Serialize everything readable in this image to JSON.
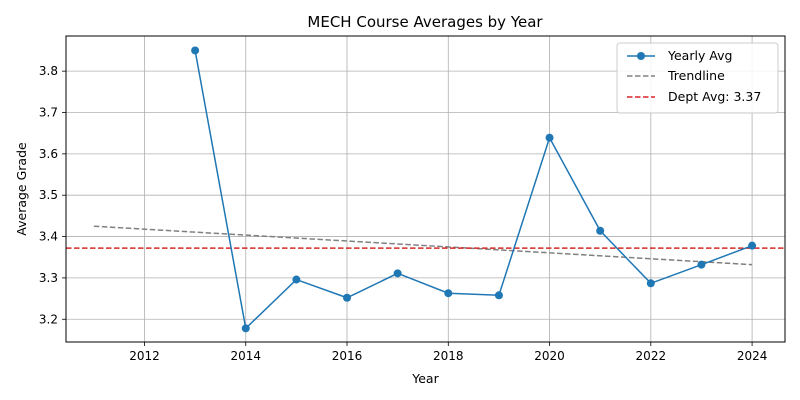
{
  "chart_data": {
    "type": "line",
    "title": "MECH Course Averages by Year",
    "xlabel": "Year",
    "ylabel": "Average Grade",
    "xlim": [
      2010.45,
      2024.65
    ],
    "ylim": [
      3.145,
      3.885
    ],
    "x_ticks": [
      2012,
      2014,
      2016,
      2018,
      2020,
      2022,
      2024
    ],
    "y_ticks": [
      3.2,
      3.3,
      3.4,
      3.5,
      3.6,
      3.7,
      3.8
    ],
    "grid": true,
    "legend_position": "upper right",
    "series": [
      {
        "name": "Yearly Avg",
        "style": "solid line with circle markers",
        "color": "#1f77b4",
        "x": [
          2013,
          2014,
          2015,
          2016,
          2017,
          2018,
          2019,
          2020,
          2021,
          2022,
          2023,
          2024
        ],
        "y": [
          3.85,
          3.178,
          3.296,
          3.252,
          3.311,
          3.263,
          3.258,
          3.639,
          3.414,
          3.287,
          3.332,
          3.378
        ]
      },
      {
        "name": "Trendline",
        "style": "dashed",
        "color": "#808080",
        "x": [
          2011,
          2024
        ],
        "y": [
          3.425,
          3.332
        ]
      },
      {
        "name": "Dept Avg: 3.37",
        "style": "dashed horizontal",
        "color": "#d62728",
        "value": 3.372
      }
    ]
  }
}
